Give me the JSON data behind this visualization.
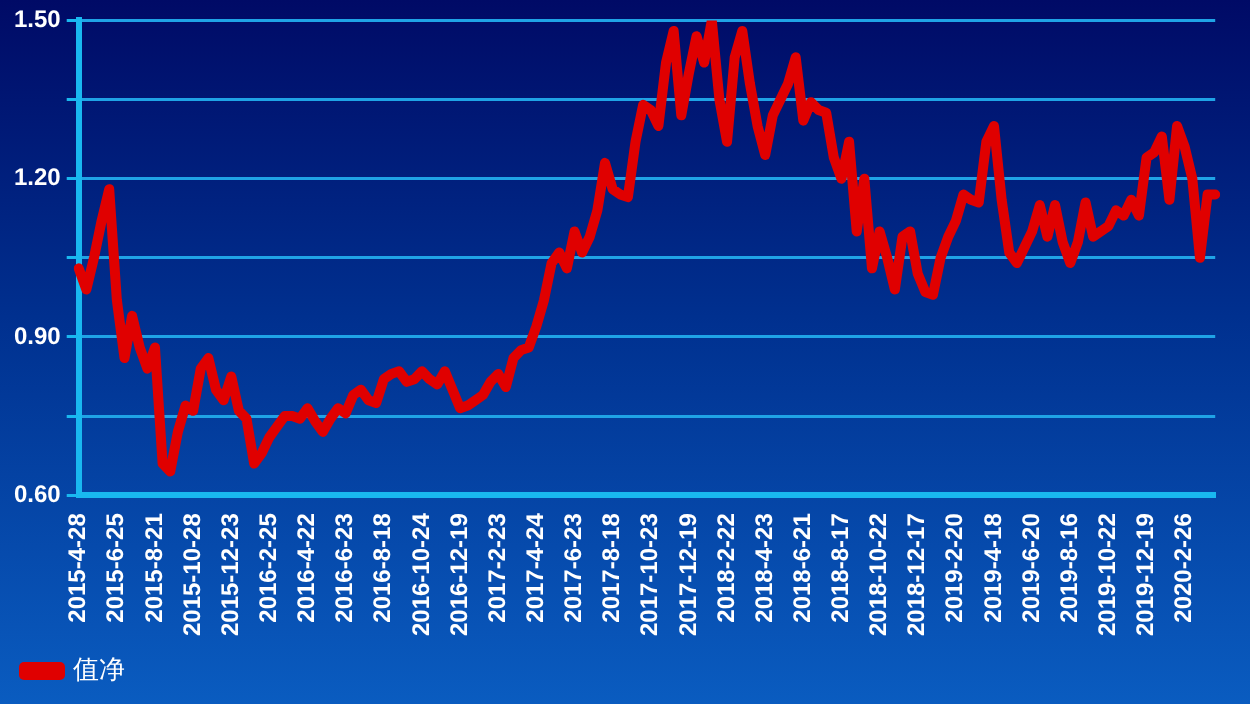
{
  "chart_data": {
    "type": "line",
    "categories": [
      "2015-4-28",
      null,
      null,
      null,
      null,
      "2015-6-25",
      null,
      null,
      null,
      null,
      "2015-8-21",
      null,
      null,
      null,
      null,
      "2015-10-28",
      null,
      null,
      null,
      null,
      "2015-12-23",
      null,
      null,
      null,
      null,
      "2016-2-25",
      null,
      null,
      null,
      null,
      "2016-4-22",
      null,
      null,
      null,
      null,
      "2016-6-23",
      null,
      null,
      null,
      null,
      "2016-8-18",
      null,
      null,
      null,
      null,
      "2016-10-24",
      null,
      null,
      null,
      null,
      "2016-12-19",
      null,
      null,
      null,
      null,
      "2017-2-23",
      null,
      null,
      null,
      null,
      "2017-4-24",
      null,
      null,
      null,
      null,
      "2017-6-23",
      null,
      null,
      null,
      null,
      "2017-8-18",
      null,
      null,
      null,
      null,
      "2017-10-23",
      null,
      null,
      null,
      null,
      "2017-12-19",
      null,
      null,
      null,
      null,
      "2018-2-22",
      null,
      null,
      null,
      null,
      "2018-4-23",
      null,
      null,
      null,
      null,
      "2018-6-21",
      null,
      null,
      null,
      null,
      "2018-8-17",
      null,
      null,
      null,
      null,
      "2018-10-22",
      null,
      null,
      null,
      null,
      "2018-12-17",
      null,
      null,
      null,
      null,
      "2019-2-20",
      null,
      null,
      null,
      null,
      "2019-4-18",
      null,
      null,
      null,
      null,
      "2019-6-20",
      null,
      null,
      null,
      null,
      "2019-8-16",
      null,
      null,
      null,
      null,
      "2019-10-22",
      null,
      null,
      null,
      null,
      "2019-12-19",
      null,
      null,
      null,
      null,
      "2020-2-26",
      null,
      null,
      null,
      null
    ],
    "series": [
      {
        "name": "值净",
        "color": "#e00000",
        "values": [
          1.03,
          0.99,
          1.05,
          1.12,
          1.18,
          0.97,
          0.86,
          0.94,
          0.88,
          0.84,
          0.88,
          0.66,
          0.645,
          0.72,
          0.77,
          0.76,
          0.84,
          0.86,
          0.8,
          0.78,
          0.825,
          0.76,
          0.745,
          0.66,
          0.68,
          0.71,
          0.73,
          0.75,
          0.75,
          0.745,
          0.765,
          0.74,
          0.72,
          0.745,
          0.765,
          0.755,
          0.79,
          0.8,
          0.78,
          0.775,
          0.82,
          0.83,
          0.835,
          0.815,
          0.82,
          0.835,
          0.82,
          0.81,
          0.835,
          0.8,
          0.765,
          0.77,
          0.78,
          0.79,
          0.815,
          0.83,
          0.805,
          0.86,
          0.875,
          0.88,
          0.92,
          0.97,
          1.04,
          1.06,
          1.03,
          1.1,
          1.06,
          1.09,
          1.14,
          1.23,
          1.18,
          1.17,
          1.165,
          1.27,
          1.34,
          1.33,
          1.3,
          1.42,
          1.48,
          1.32,
          1.4,
          1.47,
          1.42,
          1.5,
          1.35,
          1.27,
          1.43,
          1.48,
          1.38,
          1.3,
          1.245,
          1.32,
          1.35,
          1.38,
          1.43,
          1.31,
          1.345,
          1.33,
          1.325,
          1.24,
          1.2,
          1.27,
          1.1,
          1.2,
          1.03,
          1.1,
          1.05,
          0.99,
          1.09,
          1.1,
          1.02,
          0.985,
          0.98,
          1.05,
          1.09,
          1.12,
          1.17,
          1.16,
          1.155,
          1.27,
          1.3,
          1.16,
          1.06,
          1.04,
          1.07,
          1.1,
          1.15,
          1.09,
          1.15,
          1.08,
          1.04,
          1.08,
          1.155,
          1.09,
          1.1,
          1.11,
          1.14,
          1.13,
          1.16,
          1.13,
          1.24,
          1.25,
          1.28,
          1.16,
          1.3,
          1.26,
          1.2,
          1.05,
          1.17,
          1.17
        ]
      }
    ],
    "ylim": [
      0.6,
      1.5
    ],
    "yticks": [
      {
        "value": 0.6,
        "label": "0.60"
      },
      {
        "value": 0.75,
        "label": null
      },
      {
        "value": 0.9,
        "label": "0.90"
      },
      {
        "value": 1.05,
        "label": null
      },
      {
        "value": 1.2,
        "label": "1.20"
      },
      {
        "value": 1.35,
        "label": null
      },
      {
        "value": 1.5,
        "label": "1.50"
      }
    ],
    "grid": "y",
    "legend": "bottom",
    "marker": "none",
    "line_style": "solid"
  }
}
